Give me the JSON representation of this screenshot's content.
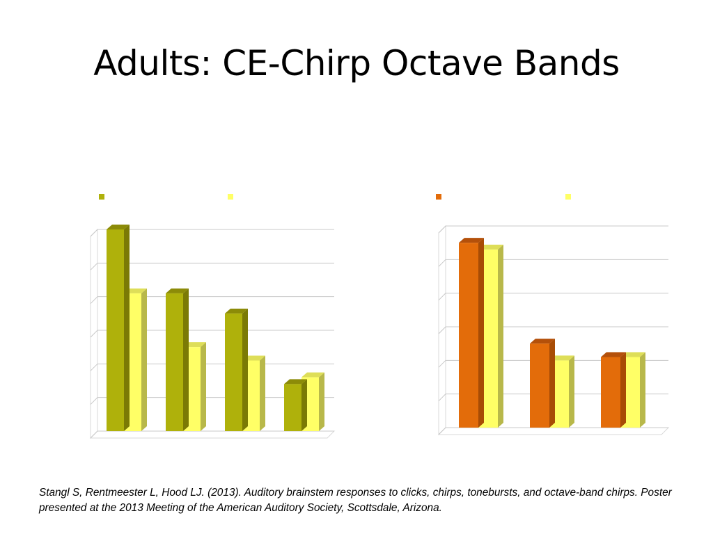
{
  "slide": {
    "title": "Adults: CE-Chirp Octave Bands",
    "citation": "Stangl S, Rentmeester L, Hood LJ.  (2013).  Auditory brainstem responses to clicks, chirps, tonebursts, and octave-band chirps.  Poster presented at the 2013 Meeting of the American Auditory Society, Scottsdale, Arizona."
  },
  "colors": {
    "olive_front": "#afb10b",
    "olive_side": "#7b7a05",
    "olive_top": "#8c8b08",
    "orange_front": "#e36c0a",
    "orange_side": "#a84c05",
    "orange_top": "#b4500a",
    "yellow_front": "#ffff66",
    "yellow_side": "#b8b84a",
    "yellow_top": "#dede58",
    "grid": "#c8c8c8",
    "wall": "#d9d9d9"
  },
  "chart_data": [
    {
      "type": "bar",
      "title": "",
      "xlabel": "",
      "ylabel": "",
      "ylim": [
        0,
        6
      ],
      "grid": true,
      "legend": "top",
      "categories": [
        "",
        "",
        "",
        ""
      ],
      "series": [
        {
          "values": [
            6.0,
            4.1,
            3.5,
            1.4
          ],
          "color_key": "olive"
        },
        {
          "values": [
            4.1,
            2.5,
            2.1,
            1.6
          ],
          "color_key": "yellow"
        }
      ]
    },
    {
      "type": "bar",
      "title": "",
      "xlabel": "",
      "ylabel": "",
      "ylim": [
        0,
        6
      ],
      "grid": true,
      "legend": "top",
      "categories": [
        "",
        "",
        ""
      ],
      "series": [
        {
          "values": [
            5.5,
            2.5,
            2.1
          ],
          "color_key": "orange"
        },
        {
          "values": [
            5.3,
            2.0,
            2.1
          ],
          "color_key": "yellow"
        }
      ]
    }
  ]
}
